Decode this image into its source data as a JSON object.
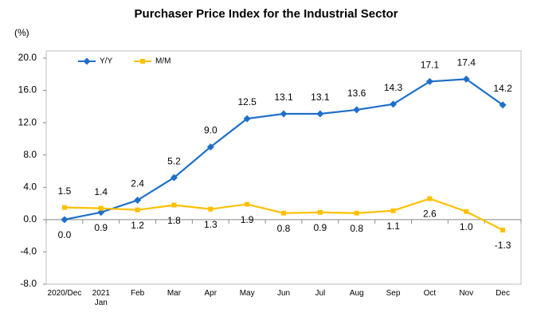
{
  "chart_data": {
    "type": "line",
    "title": "Purchaser Price Index for the Industrial Sector",
    "y_unit_label": "(%)",
    "categories": [
      "2020/Dec",
      "2021\nJan",
      "Feb",
      "Mar",
      "Apr",
      "May",
      "Jun",
      "Jul",
      "Aug",
      "Sep",
      "Oct",
      "Nov",
      "Dec"
    ],
    "series": [
      {
        "name": "Y/Y",
        "color": "#1f6fc9",
        "marker": "diamond",
        "values": [
          0,
          0.9,
          2.4,
          5.2,
          9,
          12.5,
          13.1,
          13.1,
          13.6,
          14.3,
          17.1,
          17.4,
          14.2
        ],
        "value_labels": [
          "0.0",
          "0.9",
          "2.4",
          "5.2",
          "9.0",
          "12.5",
          "13.1",
          "13.1",
          "13.6",
          "14.3",
          "17.1",
          "17.4",
          "14.2"
        ]
      },
      {
        "name": "M/M",
        "color": "#ffc000",
        "marker": "square",
        "values": [
          1.5,
          1.4,
          1.2,
          1.8,
          1.3,
          1.9,
          0.8,
          0.9,
          0.8,
          1.1,
          2.6,
          1.0,
          -1.3
        ],
        "value_labels": [
          "1.5",
          "1.4",
          "1.2",
          "1.8",
          "1.3",
          "1.9",
          "0.8",
          "0.9",
          "0.8",
          "1.1",
          "2.6",
          "1.0",
          "-1.3"
        ]
      }
    ],
    "ylim": [
      -8,
      20
    ],
    "yticks": [
      {
        "value": -8,
        "label": "-8.0"
      },
      {
        "value": -4,
        "label": "-4.0"
      },
      {
        "value": 0,
        "label": "0.0"
      },
      {
        "value": 4,
        "label": "4.0"
      },
      {
        "value": 8,
        "label": "8.0"
      },
      {
        "value": 12,
        "label": "12.0"
      },
      {
        "value": 16,
        "label": "16.0"
      },
      {
        "value": 20,
        "label": "20.0"
      }
    ],
    "legend": "upper left"
  }
}
